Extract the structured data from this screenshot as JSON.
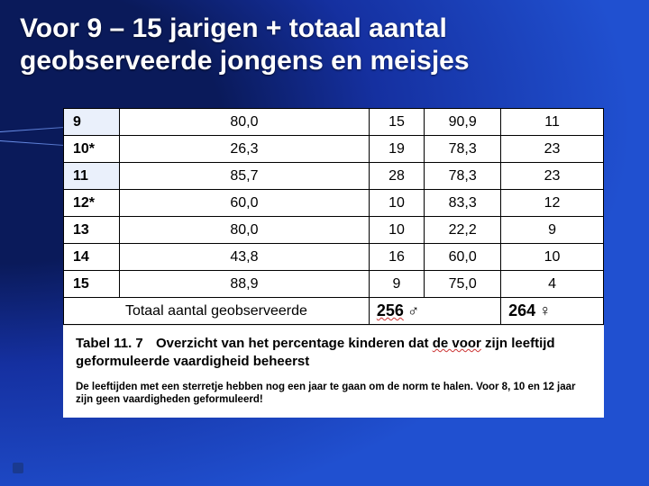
{
  "colors": {
    "slide_bg_inner": "#0a1a5a",
    "slide_bg_outer": "#2050d0",
    "title_text": "#ffffff",
    "panel_bg": "#ffffff",
    "cell_border": "#000000",
    "shaded_cell": "#eaf0fb",
    "wavy_underline": "#cc3333"
  },
  "typography": {
    "title_fontsize_pt": 23,
    "table_fontsize_pt": 12,
    "caption_title_fontsize_pt": 11,
    "caption_note_fontsize_pt": 8,
    "font_family": "Arial"
  },
  "title": "Voor 9 – 15 jarigen + totaal aantal geobserveerde jongens en meisjes",
  "table": {
    "col_widths_pct": [
      12,
      24,
      16,
      24,
      16
    ],
    "shaded_age_rows": [
      "9",
      "11"
    ],
    "rows": [
      {
        "age": "9",
        "boys_pct": "80,0",
        "boys_n": "15",
        "girls_pct": "90,9",
        "girls_n": "11"
      },
      {
        "age": "10*",
        "boys_pct": "26,3",
        "boys_n": "19",
        "girls_pct": "78,3",
        "girls_n": "23"
      },
      {
        "age": "11",
        "boys_pct": "85,7",
        "boys_n": "28",
        "girls_pct": "78,3",
        "girls_n": "23"
      },
      {
        "age": "12*",
        "boys_pct": "60,0",
        "boys_n": "10",
        "girls_pct": "83,3",
        "girls_n": "12"
      },
      {
        "age": "13",
        "boys_pct": "80,0",
        "boys_n": "10",
        "girls_pct": "22,2",
        "girls_n": "9"
      },
      {
        "age": "14",
        "boys_pct": "43,8",
        "boys_n": "16",
        "girls_pct": "60,0",
        "girls_n": "10"
      },
      {
        "age": "15",
        "boys_pct": "88,9",
        "boys_n": "9",
        "girls_pct": "75,0",
        "girls_n": "4"
      }
    ],
    "total": {
      "label": "Totaal aantal geobserveerde",
      "boys_total": "256",
      "boys_symbol": "♂",
      "girls_total": "264",
      "girls_symbol": "♀"
    }
  },
  "caption": {
    "table_number": "Tabel 11. 7",
    "text_prefix": "Overzicht van het percentage kinderen dat ",
    "text_wavy": "de voor",
    "text_mid": " zijn leeftijd geformuleerde vaardigheid ",
    "text_end": "beheerst",
    "note": "De leeftijden met een sterretje hebben nog een jaar te gaan om de norm te halen. Voor 8, 10 en 12 jaar zijn geen vaardigheden geformuleerd!"
  }
}
